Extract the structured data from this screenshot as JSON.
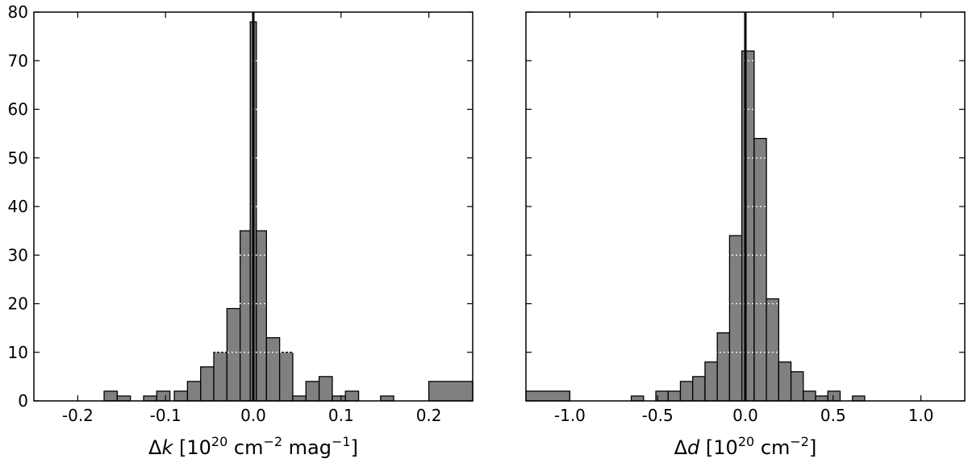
{
  "chart_data": [
    {
      "type": "bar",
      "xlabel_main": "Δ",
      "xlabel_var": "k",
      "xlabel_unit": "[10",
      "xlabel_exp1": "20",
      "xlabel_unit2": " cm",
      "xlabel_exp2": "−2",
      "xlabel_unit3": " mag",
      "xlabel_exp3": "−1",
      "xlabel_close": "]",
      "xlim": [
        -0.25,
        0.25
      ],
      "ylim": [
        0,
        80
      ],
      "xticks": [
        -0.2,
        -0.1,
        0.0,
        0.1,
        0.2
      ],
      "xtick_labels": [
        "-0.2",
        "-0.1",
        "0.0",
        "0.1",
        "0.2"
      ],
      "yticks": [
        0,
        10,
        20,
        30,
        40,
        50,
        60,
        70,
        80
      ],
      "ytick_labels": [
        "0",
        "10",
        "20",
        "30",
        "40",
        "50",
        "60",
        "70",
        "80"
      ],
      "show_y_labels": true,
      "vline": 0.0,
      "grid": "dotted white on bars",
      "bins": [
        {
          "x0": -0.17,
          "x1": -0.155,
          "count": 2
        },
        {
          "x0": -0.155,
          "x1": -0.14,
          "count": 1
        },
        {
          "x0": -0.125,
          "x1": -0.11,
          "count": 1
        },
        {
          "x0": -0.11,
          "x1": -0.095,
          "count": 2
        },
        {
          "x0": -0.09,
          "x1": -0.075,
          "count": 2
        },
        {
          "x0": -0.075,
          "x1": -0.06,
          "count": 4
        },
        {
          "x0": -0.06,
          "x1": -0.045,
          "count": 7
        },
        {
          "x0": -0.045,
          "x1": -0.03,
          "count": 10
        },
        {
          "x0": -0.03,
          "x1": -0.015,
          "count": 19
        },
        {
          "x0": -0.015,
          "x1": -0.0035,
          "count": 35
        },
        {
          "x0": -0.0035,
          "x1": 0.0035,
          "count": 78
        },
        {
          "x0": 0.0035,
          "x1": 0.015,
          "count": 35
        },
        {
          "x0": 0.015,
          "x1": 0.03,
          "count": 13
        },
        {
          "x0": 0.03,
          "x1": 0.045,
          "count": 10
        },
        {
          "x0": 0.045,
          "x1": 0.06,
          "count": 1
        },
        {
          "x0": 0.06,
          "x1": 0.075,
          "count": 4
        },
        {
          "x0": 0.075,
          "x1": 0.09,
          "count": 5
        },
        {
          "x0": 0.09,
          "x1": 0.105,
          "count": 1
        },
        {
          "x0": 0.105,
          "x1": 0.12,
          "count": 2
        },
        {
          "x0": 0.145,
          "x1": 0.16,
          "count": 1
        },
        {
          "x0": 0.2,
          "x1": 0.25,
          "count": 4
        }
      ]
    },
    {
      "type": "bar",
      "xlabel_main": "Δ",
      "xlabel_var": "d",
      "xlabel_unit": "[10",
      "xlabel_exp1": "20",
      "xlabel_unit2": " cm",
      "xlabel_exp2": "−2",
      "xlabel_close": "]",
      "xlim": [
        -1.25,
        1.25
      ],
      "ylim": [
        0,
        80
      ],
      "xticks": [
        -1.0,
        -0.5,
        0.0,
        0.5,
        1.0
      ],
      "xtick_labels": [
        "-1.0",
        "-0.5",
        "0.0",
        "0.5",
        "1.0"
      ],
      "yticks": [
        0,
        10,
        20,
        30,
        40,
        50,
        60,
        70,
        80
      ],
      "ytick_labels": [],
      "show_y_labels": false,
      "vline": 0.0,
      "grid": "dotted white on bars",
      "bins": [
        {
          "x0": -1.25,
          "x1": -1.0,
          "count": 2
        },
        {
          "x0": -0.65,
          "x1": -0.58,
          "count": 1
        },
        {
          "x0": -0.51,
          "x1": -0.44,
          "count": 2
        },
        {
          "x0": -0.44,
          "x1": -0.37,
          "count": 2
        },
        {
          "x0": -0.37,
          "x1": -0.3,
          "count": 4
        },
        {
          "x0": -0.3,
          "x1": -0.23,
          "count": 5
        },
        {
          "x0": -0.23,
          "x1": -0.16,
          "count": 8
        },
        {
          "x0": -0.16,
          "x1": -0.09,
          "count": 14
        },
        {
          "x0": -0.09,
          "x1": -0.02,
          "count": 34
        },
        {
          "x0": -0.02,
          "x1": 0.05,
          "count": 72
        },
        {
          "x0": 0.05,
          "x1": 0.12,
          "count": 54
        },
        {
          "x0": 0.12,
          "x1": 0.19,
          "count": 21
        },
        {
          "x0": 0.19,
          "x1": 0.26,
          "count": 8
        },
        {
          "x0": 0.26,
          "x1": 0.33,
          "count": 6
        },
        {
          "x0": 0.33,
          "x1": 0.4,
          "count": 2
        },
        {
          "x0": 0.4,
          "x1": 0.47,
          "count": 1
        },
        {
          "x0": 0.47,
          "x1": 0.54,
          "count": 2
        },
        {
          "x0": 0.61,
          "x1": 0.68,
          "count": 1
        }
      ]
    }
  ],
  "colors": {
    "bar_fill": "#808080",
    "bar_edge": "#000000",
    "grid": "#ffffff",
    "vline": "#000000"
  }
}
